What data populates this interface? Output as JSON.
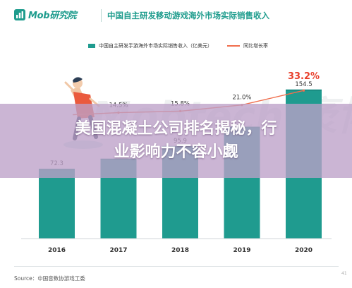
{
  "header": {
    "logo_text": "Mob研究院",
    "title": "中国自主研发移动游戏海外市场实际销售收入"
  },
  "legend": {
    "bar_label": "中国自主研发手游海外市场实际销售收入（亿美元）",
    "line_label": "同比增长率"
  },
  "overlay": {
    "line1": "美国混凝土公司排名揭秘，行",
    "line2": "业影响力不容小觑"
  },
  "watermark": "Mobtech 袤博",
  "footer": {
    "source": "Source：中国音数协游戏工委",
    "page_number": "41"
  },
  "colors": {
    "bar": "#1f9b8f",
    "bar_top": "#1a8d82",
    "line": "#f06e4d",
    "highlight_label": "#e8402c",
    "brand": "#1e9c8d"
  },
  "chart_data": {
    "type": "bar",
    "categories": [
      "2016",
      "2017",
      "2018",
      "2019",
      "2020"
    ],
    "series": [
      {
        "name": "中国自主研发手游海外市场实际销售收入（亿美元）",
        "type": "bar",
        "values": [
          72.3,
          82.8,
          95.9,
          115.9,
          154.5
        ],
        "labels": [
          "72.3",
          "",
          "95.9",
          "",
          "154.5"
        ]
      },
      {
        "name": "同比增长率",
        "type": "line",
        "values": [
          null,
          14.5,
          15.8,
          21.0,
          33.2
        ],
        "labels": [
          "",
          "14.5%",
          "15.8%",
          "21.0%",
          "33.2%"
        ]
      }
    ],
    "ylim": [
      0,
      180
    ],
    "y2lim": [
      0,
      80
    ],
    "grid": false,
    "legend_position": "top"
  }
}
